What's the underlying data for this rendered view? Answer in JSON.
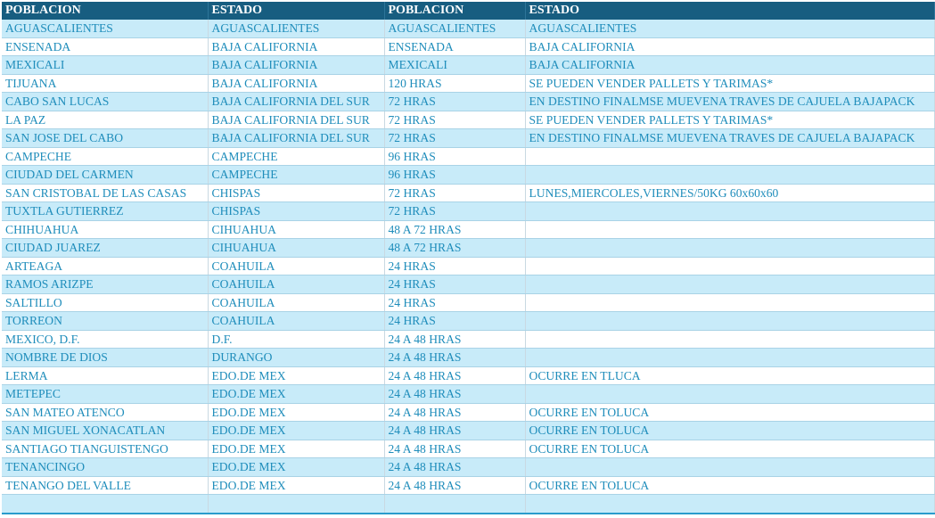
{
  "headers": [
    "POBLACION",
    "ESTADO",
    "POBLACION",
    "ESTADO"
  ],
  "rows": [
    [
      "AGUASCALIENTES",
      "AGUASCALIENTES",
      "AGUASCALIENTES",
      "AGUASCALIENTES"
    ],
    [
      "ENSENADA",
      "BAJA CALIFORNIA",
      "ENSENADA",
      "BAJA CALIFORNIA"
    ],
    [
      "MEXICALI",
      "BAJA CALIFORNIA",
      "MEXICALI",
      "BAJA CALIFORNIA"
    ],
    [
      "TIJUANA",
      "BAJA CALIFORNIA",
      "120 HRAS",
      "SE PUEDEN VENDER PALLETS Y TARIMAS*"
    ],
    [
      "CABO SAN LUCAS",
      "BAJA CALIFORNIA DEL SUR",
      "72 HRAS",
      "EN DESTINO FINALMSE MUEVENA TRAVES DE CAJUELA BAJAPACK"
    ],
    [
      "LA PAZ",
      "BAJA CALIFORNIA DEL SUR",
      "72 HRAS",
      "SE PUEDEN VENDER PALLETS Y TARIMAS*"
    ],
    [
      "SAN JOSE DEL CABO",
      "BAJA CALIFORNIA DEL SUR",
      "72 HRAS",
      "EN DESTINO FINALMSE MUEVENA TRAVES DE CAJUELA BAJAPACK"
    ],
    [
      "CAMPECHE",
      "CAMPECHE",
      "96 HRAS",
      ""
    ],
    [
      "CIUDAD DEL CARMEN",
      "CAMPECHE",
      "96 HRAS",
      ""
    ],
    [
      "SAN CRISTOBAL DE LAS CASAS",
      "CHISPAS",
      "72 HRAS",
      "LUNES,MIERCOLES,VIERNES/50KG 60x60x60"
    ],
    [
      "TUXTLA GUTIERREZ",
      "CHISPAS",
      "72 HRAS",
      ""
    ],
    [
      "CHIHUAHUA",
      "CIHUAHUA",
      "48 A 72 HRAS",
      ""
    ],
    [
      "CIUDAD JUAREZ",
      "CIHUAHUA",
      "48 A 72 HRAS",
      ""
    ],
    [
      "ARTEAGA",
      "COAHUILA",
      "24 HRAS",
      ""
    ],
    [
      "RAMOS ARIZPE",
      "COAHUILA",
      "24 HRAS",
      ""
    ],
    [
      "SALTILLO",
      "COAHUILA",
      "24 HRAS",
      ""
    ],
    [
      "TORREON",
      "COAHUILA",
      "24 HRAS",
      ""
    ],
    [
      "MEXICO, D.F.",
      "D.F.",
      "24 A 48 HRAS",
      ""
    ],
    [
      "NOMBRE DE DIOS",
      "DURANGO",
      "24 A 48 HRAS",
      ""
    ],
    [
      "LERMA",
      "EDO.DE MEX",
      "24 A 48 HRAS",
      "OCURRE EN TLUCA"
    ],
    [
      "METEPEC",
      "EDO.DE MEX",
      "24 A 48 HRAS",
      ""
    ],
    [
      "SAN MATEO ATENCO",
      "EDO.DE MEX",
      "24 A 48 HRAS",
      "OCURRE EN TOLUCA"
    ],
    [
      "SAN MIGUEL XONACATLAN",
      "EDO.DE MEX",
      "24 A 48 HRAS",
      "OCURRE EN TOLUCA"
    ],
    [
      "SANTIAGO TIANGUISTENGO",
      "EDO.DE MEX",
      "24 A 48 HRAS",
      "OCURRE EN TOLUCA"
    ],
    [
      "TENANCINGO",
      "EDO.DE MEX",
      "24 A 48 HRAS",
      ""
    ],
    [
      "TENANGO DEL VALLE",
      "EDO.DE MEX",
      "24 A 48 HRAS",
      "OCURRE EN TOLUCA"
    ],
    [
      "",
      "",
      "",
      ""
    ]
  ]
}
